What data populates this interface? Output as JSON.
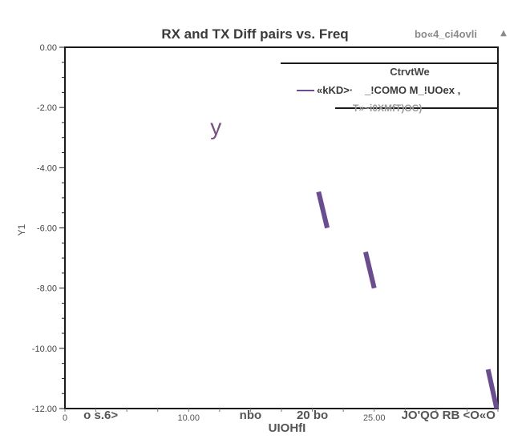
{
  "colors": {
    "series": "#6a4c93",
    "annotation": "#7b4e8a",
    "axis": "#1a1a1a",
    "text": "#3a3a3a",
    "muted": "#8a8a8a"
  },
  "header": {
    "corner_label": "bo«4_ci4ovli",
    "corner_icon": "caret-up-icon"
  },
  "chart_data": {
    "type": "line",
    "title": "RX and TX Diff pairs vs. Freq",
    "xlabel": "UIOHfI",
    "ylabel": "Y1",
    "xlim": [
      0,
      35
    ],
    "ylim": [
      -12,
      0
    ],
    "grid": false,
    "legend_placement": "top-right",
    "legend": {
      "title": "CtrvtWe",
      "entries": [
        "«kKD>·",
        "_!COMO M_!UOex ,",
        "T»~i0XMfT)OC)"
      ]
    },
    "yticks": [
      {
        "value": 0,
        "label": "0.00"
      },
      {
        "value": -2,
        "label": "-2.00"
      },
      {
        "value": -4,
        "label": "-4.00"
      },
      {
        "value": -6,
        "label": "-6.00"
      },
      {
        "value": -8,
        "label": "-8.00"
      },
      {
        "value": -10,
        "label": "-10.00"
      },
      {
        "value": -12,
        "label": "-12.00"
      }
    ],
    "xticks_small": [
      {
        "value": 0,
        "label": "0"
      },
      {
        "value": 10,
        "label": "10.00"
      },
      {
        "value": 25,
        "label": "25.00"
      }
    ],
    "xticks_large": [
      {
        "value": 1.5,
        "label": "o s.6>"
      },
      {
        "value": 15,
        "label": "nbo"
      },
      {
        "value": 20,
        "label": "20 bo"
      },
      {
        "value": 31,
        "label": "JO'QO RB <O«O"
      }
    ],
    "series": [
      {
        "segments": [
          [
            [
              20.5,
              -4.8
            ],
            [
              21.2,
              -6.0
            ]
          ],
          [
            [
              24.3,
              -6.8
            ],
            [
              25.0,
              -8.0
            ]
          ],
          [
            [
              34.2,
              -10.7
            ],
            [
              34.9,
              -12.0
            ]
          ]
        ]
      }
    ],
    "annotations": [
      {
        "text": "y",
        "x": 12.2,
        "y": -2.9
      }
    ]
  }
}
